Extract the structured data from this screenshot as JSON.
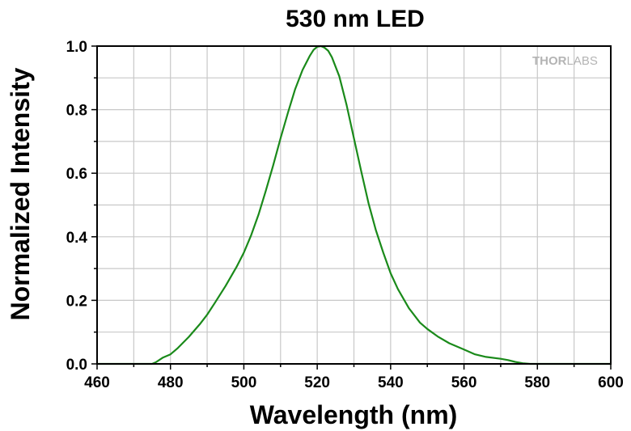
{
  "chart_data": {
    "type": "line",
    "title": "530 nm LED",
    "xlabel": "Wavelength (nm)",
    "ylabel": "Normalized Intensity",
    "xlim": [
      460,
      600
    ],
    "ylim": [
      0,
      1.0
    ],
    "xticks": [
      460,
      480,
      500,
      520,
      540,
      560,
      580,
      600
    ],
    "xtick_labels": [
      "460",
      "480",
      "500",
      "520",
      "540",
      "560",
      "580",
      "600"
    ],
    "yticks": [
      0.0,
      0.2,
      0.4,
      0.6,
      0.8,
      1.0
    ],
    "ytick_labels": [
      "0.0",
      "0.2",
      "0.4",
      "0.6",
      "0.8",
      "1.0"
    ],
    "grid": true,
    "series": [
      {
        "color": "#1a8a1a",
        "x": [
          460,
          470,
          475,
          476,
          478,
          480,
          482,
          485,
          488,
          490,
          492,
          495,
          498,
          500,
          502,
          504,
          506,
          508,
          510,
          512,
          514,
          516,
          518,
          519,
          520,
          521,
          522,
          523,
          524,
          526,
          528,
          530,
          532,
          534,
          536,
          538,
          540,
          542,
          545,
          548,
          550,
          553,
          556,
          560,
          563,
          566,
          570,
          572,
          574,
          576,
          578,
          580,
          590,
          600
        ],
        "y": [
          0.0,
          0.0,
          0.0,
          0.005,
          0.02,
          0.03,
          0.05,
          0.085,
          0.125,
          0.155,
          0.19,
          0.245,
          0.305,
          0.35,
          0.405,
          0.47,
          0.545,
          0.625,
          0.71,
          0.79,
          0.865,
          0.925,
          0.97,
          0.988,
          0.998,
          1.0,
          0.995,
          0.985,
          0.965,
          0.905,
          0.815,
          0.71,
          0.605,
          0.505,
          0.42,
          0.35,
          0.285,
          0.235,
          0.175,
          0.13,
          0.11,
          0.085,
          0.065,
          0.045,
          0.03,
          0.022,
          0.016,
          0.012,
          0.006,
          0.002,
          0.0,
          0.0,
          0.0,
          0.0
        ]
      }
    ]
  },
  "watermark": {
    "text_a": "THOR",
    "text_b": "LABS"
  }
}
